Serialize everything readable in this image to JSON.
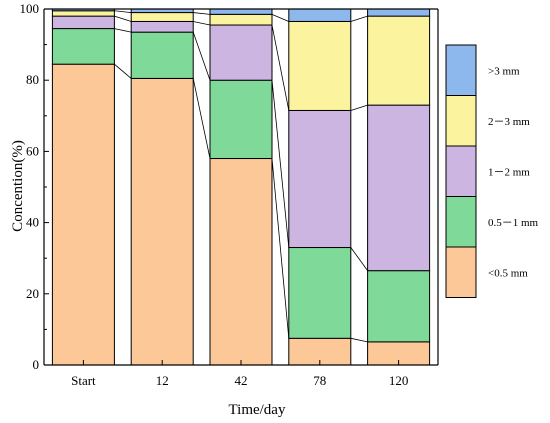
{
  "chart_data": {
    "type": "bar",
    "stacked": true,
    "categories": [
      "Start",
      "12",
      "42",
      "78",
      "120"
    ],
    "xlabel": "Time/day",
    "ylabel": "Concention(%)",
    "ylim": [
      0,
      100
    ],
    "yticks": [
      "0",
      "20",
      "40",
      "60",
      "80",
      "100"
    ],
    "grid": false,
    "legend_position": "right",
    "series": [
      {
        "name": "<0.5 mm",
        "color": "#FDC897",
        "values": [
          84.5,
          80.5,
          58.0,
          7.5,
          6.5
        ]
      },
      {
        "name": "0.5－1 mm",
        "color": "#7FD998",
        "values": [
          10.0,
          13.0,
          22.0,
          25.5,
          20.0
        ]
      },
      {
        "name": "1－2 mm",
        "color": "#CDB5E2",
        "values": [
          3.5,
          3.0,
          15.5,
          38.5,
          46.5
        ]
      },
      {
        "name": "2－3 mm",
        "color": "#FBF39E",
        "values": [
          1.5,
          2.5,
          3.0,
          25.0,
          25.0
        ]
      },
      {
        "name": ">3 mm",
        "color": "#8DB8ED",
        "values": [
          0.5,
          1.0,
          1.5,
          3.5,
          2.0
        ]
      }
    ]
  }
}
